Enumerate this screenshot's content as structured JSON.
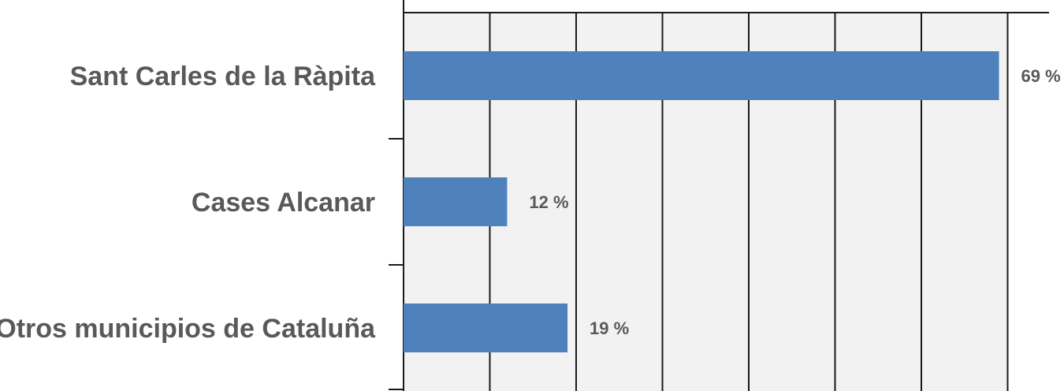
{
  "chart_data": {
    "type": "bar",
    "orientation": "horizontal",
    "categories": [
      "Sant Carles de la Ràpita",
      "Cases Alcanar",
      "Otros municipios de Cataluña"
    ],
    "values": [
      69,
      12,
      19
    ],
    "value_labels": [
      "69 %",
      "12 %",
      "19 %"
    ],
    "xlim": [
      0,
      70
    ],
    "x_gridline_step": 10,
    "grid": true,
    "legend": "none",
    "colors": {
      "bar": "#4f81bd",
      "plot_background": "#f2f2f2",
      "gridline": "#1a1a1a",
      "text": "#58595b"
    }
  }
}
